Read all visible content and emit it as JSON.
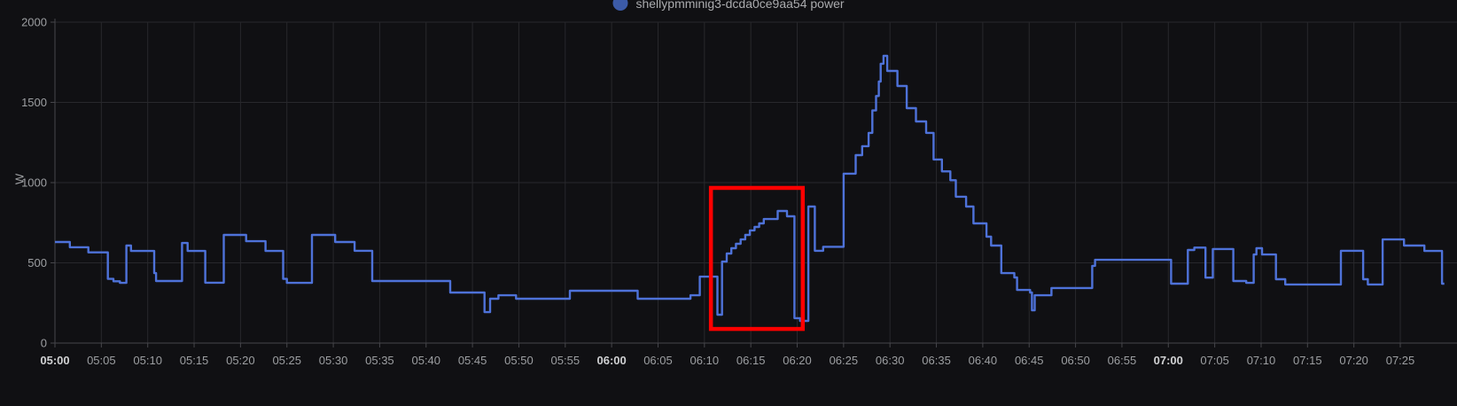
{
  "legend": {
    "series_label": "shellypmminig3-dcda0ce9aa54 power",
    "dot_color": "#3c5ba8",
    "label_color": "#aaabae"
  },
  "colors": {
    "background": "#101013",
    "grid": "#28282c",
    "axis": "#46464b",
    "tick_label": "#9d9fa2",
    "tick_label_bold": "#d0d1d3",
    "series_line": "#4e72d9",
    "annotation": "#ff0000"
  },
  "chart_data": {
    "type": "line",
    "render": "step-after",
    "title": "shellypmminig3-dcda0ce9aa54 power",
    "ylabel": "W",
    "xlabel": "",
    "x_unit": "minutes after 05:00",
    "y_min": 0,
    "y_max": 2000,
    "y_ticks": [
      0,
      500,
      1000,
      1500,
      2000
    ],
    "x_ticks": [
      {
        "t": 0,
        "label": "05:00",
        "bold": true
      },
      {
        "t": 5,
        "label": "05:05",
        "bold": false
      },
      {
        "t": 10,
        "label": "05:10",
        "bold": false
      },
      {
        "t": 15,
        "label": "05:15",
        "bold": false
      },
      {
        "t": 20,
        "label": "05:20",
        "bold": false
      },
      {
        "t": 25,
        "label": "05:25",
        "bold": false
      },
      {
        "t": 30,
        "label": "05:30",
        "bold": false
      },
      {
        "t": 35,
        "label": "05:35",
        "bold": false
      },
      {
        "t": 40,
        "label": "05:40",
        "bold": false
      },
      {
        "t": 45,
        "label": "05:45",
        "bold": false
      },
      {
        "t": 50,
        "label": "05:50",
        "bold": false
      },
      {
        "t": 55,
        "label": "05:55",
        "bold": false
      },
      {
        "t": 60,
        "label": "06:00",
        "bold": true
      },
      {
        "t": 65,
        "label": "06:05",
        "bold": false
      },
      {
        "t": 70,
        "label": "06:10",
        "bold": false
      },
      {
        "t": 75,
        "label": "06:15",
        "bold": false
      },
      {
        "t": 80,
        "label": "06:20",
        "bold": false
      },
      {
        "t": 85,
        "label": "06:25",
        "bold": false
      },
      {
        "t": 90,
        "label": "06:30",
        "bold": false
      },
      {
        "t": 95,
        "label": "06:35",
        "bold": false
      },
      {
        "t": 100,
        "label": "06:40",
        "bold": false
      },
      {
        "t": 105,
        "label": "06:45",
        "bold": false
      },
      {
        "t": 110,
        "label": "06:50",
        "bold": false
      },
      {
        "t": 115,
        "label": "06:55",
        "bold": false
      },
      {
        "t": 120,
        "label": "07:00",
        "bold": true
      },
      {
        "t": 125,
        "label": "07:05",
        "bold": false
      },
      {
        "t": 130,
        "label": "07:10",
        "bold": false
      },
      {
        "t": 135,
        "label": "07:15",
        "bold": false
      },
      {
        "t": 140,
        "label": "07:20",
        "bold": false
      },
      {
        "t": 145,
        "label": "07:25",
        "bold": false
      }
    ],
    "series": [
      {
        "name": "shellypmminig3-dcda0ce9aa54 power",
        "color": "#4e72d9",
        "end_t": 149.75,
        "points": [
          [
            0,
            630
          ],
          [
            1.6,
            597
          ],
          [
            3.6,
            565
          ],
          [
            5.7,
            400
          ],
          [
            6.3,
            385
          ],
          [
            7,
            375
          ],
          [
            7.7,
            608
          ],
          [
            8.2,
            574
          ],
          [
            10.7,
            436
          ],
          [
            10.9,
            387
          ],
          [
            13.7,
            624
          ],
          [
            14.3,
            574
          ],
          [
            16.2,
            376
          ],
          [
            18.2,
            674
          ],
          [
            20.6,
            635
          ],
          [
            22.7,
            574
          ],
          [
            24.6,
            400
          ],
          [
            25,
            375
          ],
          [
            27.7,
            674
          ],
          [
            30.2,
            630
          ],
          [
            32.3,
            575
          ],
          [
            34.2,
            387
          ],
          [
            42.6,
            315
          ],
          [
            46.3,
            193
          ],
          [
            46.9,
            276
          ],
          [
            47.8,
            298
          ],
          [
            49.7,
            276
          ],
          [
            55.5,
            326
          ],
          [
            62.8,
            276
          ],
          [
            68.5,
            298
          ],
          [
            69.5,
            414
          ],
          [
            71.4,
            177
          ],
          [
            71.9,
            508
          ],
          [
            72.4,
            558
          ],
          [
            72.9,
            591
          ],
          [
            73.4,
            619
          ],
          [
            73.9,
            646
          ],
          [
            74.4,
            674
          ],
          [
            74.9,
            702
          ],
          [
            75.4,
            724
          ],
          [
            75.9,
            746
          ],
          [
            76.4,
            773
          ],
          [
            77.9,
            823
          ],
          [
            78.9,
            790
          ],
          [
            79.7,
            155
          ],
          [
            80.3,
            138
          ],
          [
            81.2,
            851
          ],
          [
            81.9,
            575
          ],
          [
            82.8,
            600
          ],
          [
            85,
            1056
          ],
          [
            86.3,
            1171
          ],
          [
            87,
            1227
          ],
          [
            87.7,
            1310
          ],
          [
            88.1,
            1450
          ],
          [
            88.5,
            1540
          ],
          [
            88.8,
            1630
          ],
          [
            89,
            1741
          ],
          [
            89.3,
            1790
          ],
          [
            89.7,
            1696
          ],
          [
            90.8,
            1602
          ],
          [
            91.8,
            1464
          ],
          [
            92.8,
            1381
          ],
          [
            93.9,
            1310
          ],
          [
            94.7,
            1144
          ],
          [
            95.6,
            1070
          ],
          [
            96.5,
            1015
          ],
          [
            97.1,
            912
          ],
          [
            98.2,
            851
          ],
          [
            99,
            746
          ],
          [
            100.4,
            663
          ],
          [
            100.9,
            608
          ],
          [
            102,
            436
          ],
          [
            103.4,
            409
          ],
          [
            103.7,
            331
          ],
          [
            105.1,
            315
          ],
          [
            105.3,
            204
          ],
          [
            105.6,
            298
          ],
          [
            107.4,
            343
          ],
          [
            111.8,
            481
          ],
          [
            112.1,
            519
          ],
          [
            120.3,
            370
          ],
          [
            122.1,
            580
          ],
          [
            122.8,
            595
          ],
          [
            124,
            408
          ],
          [
            124.8,
            586
          ],
          [
            127,
            387
          ],
          [
            128.4,
            375
          ],
          [
            129.2,
            552
          ],
          [
            129.5,
            591
          ],
          [
            130.1,
            552
          ],
          [
            131.6,
            398
          ],
          [
            132.6,
            365
          ],
          [
            138.6,
            575
          ],
          [
            141,
            398
          ],
          [
            141.5,
            365
          ],
          [
            143.1,
            646
          ],
          [
            145.4,
            608
          ],
          [
            147.6,
            574
          ],
          [
            149.5,
            370
          ]
        ]
      }
    ],
    "annotation": {
      "shape": "rect",
      "t_start": 70.7,
      "t_end": 80.6,
      "w_low": 88,
      "w_high": 967,
      "color": "#ff0000",
      "stroke_width": 4.5
    },
    "legend_position": "top-center",
    "grid": true
  }
}
